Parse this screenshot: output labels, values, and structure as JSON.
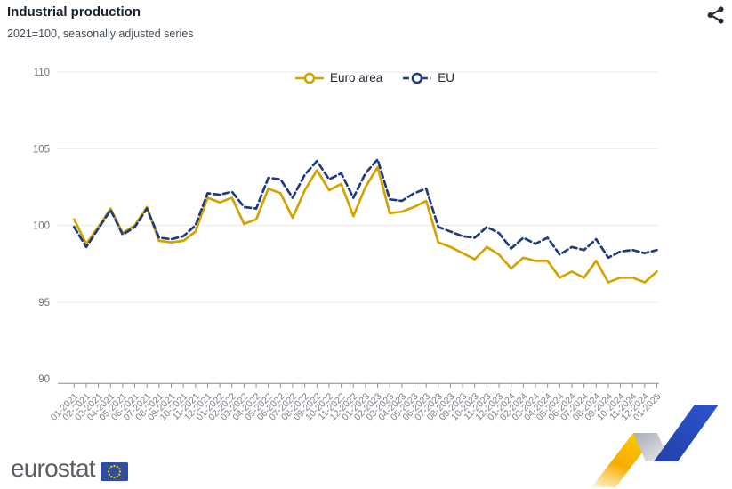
{
  "header": {
    "share_icon": "share-network"
  },
  "chart_data": {
    "type": "line",
    "title": "Industrial production",
    "subtitle": "2021=100, seasonally adjusted series",
    "categories": [
      "01-2021",
      "02-2021",
      "03-2021",
      "04-2021",
      "05-2021",
      "06-2021",
      "07-2021",
      "08-2021",
      "09-2021",
      "10-2021",
      "11-2021",
      "12-2021",
      "01-2022",
      "02-2022",
      "03-2022",
      "04-2022",
      "05-2022",
      "06-2022",
      "07-2022",
      "08-2022",
      "09-2022",
      "10-2022",
      "11-2022",
      "12-2022",
      "01-2023",
      "02-2023",
      "03-2023",
      "04-2023",
      "05-2023",
      "06-2023",
      "07-2023",
      "08-2023",
      "09-2023",
      "10-2023",
      "11-2023",
      "12-2023",
      "01-2024",
      "02-2024",
      "03-2024",
      "04-2024",
      "05-2024",
      "06-2024",
      "07-2024",
      "08-2024",
      "09-2024",
      "10-2024",
      "11-2024",
      "12-2024",
      "01-2025"
    ],
    "series": [
      {
        "name": "Euro area",
        "color": "#d4a300",
        "dash": "",
        "values": [
          100.4,
          98.8,
          99.9,
          101.1,
          99.5,
          100.0,
          101.2,
          99.0,
          98.9,
          99.0,
          99.6,
          101.8,
          101.5,
          101.8,
          100.1,
          100.4,
          102.4,
          102.1,
          100.5,
          102.3,
          103.6,
          102.3,
          102.7,
          100.6,
          102.5,
          103.8,
          100.8,
          100.9,
          101.2,
          101.6,
          98.9,
          98.6,
          98.2,
          97.8,
          98.6,
          98.1,
          97.2,
          97.9,
          97.7,
          97.7,
          96.6,
          97.0,
          96.6,
          97.7,
          96.3,
          96.6,
          96.6,
          96.3,
          97.0
        ]
      },
      {
        "name": "EU",
        "color": "#1f3d7c",
        "dash": "7,4",
        "values": [
          99.9,
          98.6,
          99.8,
          101.0,
          99.4,
          99.9,
          101.1,
          99.2,
          99.1,
          99.3,
          100.0,
          102.1,
          102.0,
          102.2,
          101.2,
          101.1,
          103.1,
          103.0,
          101.8,
          103.3,
          104.2,
          103.0,
          103.4,
          101.8,
          103.4,
          104.3,
          101.7,
          101.6,
          102.1,
          102.4,
          99.9,
          99.6,
          99.3,
          99.2,
          99.9,
          99.5,
          98.5,
          99.2,
          98.8,
          99.2,
          98.1,
          98.6,
          98.4,
          99.1,
          97.9,
          98.3,
          98.4,
          98.2,
          98.4
        ]
      }
    ],
    "ylim": [
      90,
      110
    ],
    "yticks": [
      110,
      105,
      100,
      95,
      90
    ],
    "grid": true,
    "grid_color": "#e4e9f2",
    "axis_color": "#878d96",
    "legend_position": "top-center"
  },
  "footer": {
    "logo_text": "eurostat",
    "flag_icon": "eu-flag"
  }
}
